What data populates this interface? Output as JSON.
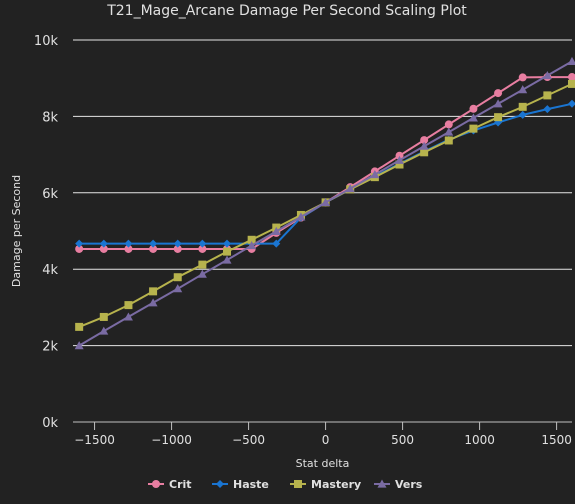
{
  "chart_data": {
    "type": "line",
    "title": "T21_Mage_Arcane Damage Per Second Scaling Plot",
    "xlabel": "Stat delta",
    "ylabel": "Damage per Second",
    "xlim": [
      -1640,
      1600
    ],
    "ylim": [
      0,
      10000
    ],
    "x_ticks": [
      {
        "value": -1500,
        "label": "−1500"
      },
      {
        "value": -1000,
        "label": "−1000"
      },
      {
        "value": -500,
        "label": "−500"
      },
      {
        "value": 0,
        "label": "0"
      },
      {
        "value": 500,
        "label": "500"
      },
      {
        "value": 1000,
        "label": "1000"
      },
      {
        "value": 1500,
        "label": "1500"
      }
    ],
    "y_ticks": [
      {
        "value": 0,
        "label": "0k"
      },
      {
        "value": 2000,
        "label": "2k"
      },
      {
        "value": 4000,
        "label": "4k"
      },
      {
        "value": 6000,
        "label": "6k"
      },
      {
        "value": 8000,
        "label": "8k"
      },
      {
        "value": 10000,
        "label": "10k"
      }
    ],
    "grid": true,
    "legend_position": "bottom-center",
    "series": [
      {
        "name": "Crit",
        "color": "#e87ea1",
        "marker": "circle",
        "x": [
          -1600,
          -1440,
          -1280,
          -1120,
          -960,
          -800,
          -640,
          -480,
          -320,
          -160,
          0,
          160,
          320,
          480,
          640,
          800,
          960,
          1120,
          1280,
          1440,
          1600
        ],
        "y": [
          4530,
          4530,
          4530,
          4530,
          4530,
          4530,
          4530,
          4530,
          4950,
          5350,
          5750,
          6150,
          6560,
          6970,
          7380,
          7790,
          8200,
          8610,
          9020,
          9030,
          9030
        ]
      },
      {
        "name": "Haste",
        "color": "#1a75d1",
        "marker": "diamond",
        "x": [
          -1600,
          -1440,
          -1280,
          -1120,
          -960,
          -800,
          -640,
          -480,
          -320,
          -160,
          0,
          160,
          320,
          480,
          640,
          800,
          960,
          1120,
          1280,
          1440,
          1600
        ],
        "y": [
          4670,
          4670,
          4670,
          4670,
          4670,
          4670,
          4670,
          4670,
          4670,
          5350,
          5750,
          6090,
          6430,
          6760,
          7080,
          7390,
          7630,
          7840,
          8040,
          8190,
          8330
        ]
      },
      {
        "name": "Mastery",
        "color": "#b7b34d",
        "marker": "square",
        "x": [
          -1600,
          -1440,
          -1280,
          -1120,
          -960,
          -800,
          -640,
          -480,
          -320,
          -160,
          0,
          160,
          320,
          480,
          640,
          800,
          960,
          1120,
          1280,
          1440,
          1600
        ],
        "y": [
          2490,
          2750,
          3060,
          3420,
          3790,
          4120,
          4460,
          4770,
          5090,
          5420,
          5750,
          6090,
          6410,
          6740,
          7060,
          7370,
          7680,
          7980,
          8250,
          8550,
          8850
        ]
      },
      {
        "name": "Vers",
        "color": "#7a6ba3",
        "marker": "triangle",
        "x": [
          -1600,
          -1440,
          -1280,
          -1120,
          -960,
          -800,
          -640,
          -480,
          -320,
          -160,
          0,
          160,
          320,
          480,
          640,
          800,
          960,
          1120,
          1280,
          1440,
          1600
        ],
        "y": [
          2000,
          2380,
          2750,
          3120,
          3490,
          3870,
          4240,
          4620,
          4990,
          5370,
          5750,
          6110,
          6480,
          6850,
          7220,
          7590,
          7960,
          8330,
          8700,
          9070,
          9440
        ]
      }
    ]
  }
}
